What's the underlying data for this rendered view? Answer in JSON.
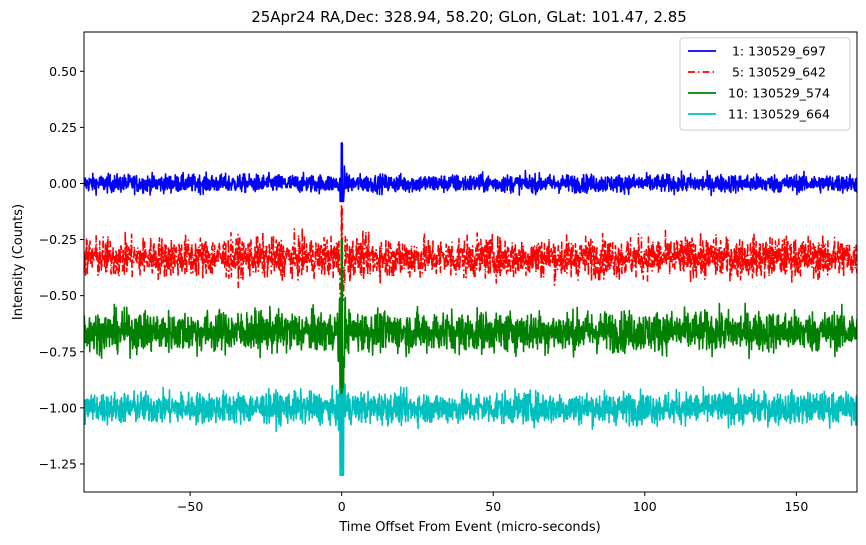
{
  "chart_data": {
    "type": "line",
    "title": "25Apr24 RA,Dec:  328.94,  58.20; GLon, GLat:  101.47,   2.85",
    "xlabel": "Time Offset From Event (micro-seconds)",
    "ylabel": "Intensity (Counts)",
    "xlim": [
      -85,
      170
    ],
    "ylim": [
      -1.375,
      0.675
    ],
    "xticks": [
      -50,
      0,
      50,
      100,
      150
    ],
    "xtick_labels": [
      "−50",
      "0",
      "50",
      "100",
      "150"
    ],
    "yticks": [
      0.5,
      0.25,
      0.0,
      -0.25,
      -0.5,
      -0.75,
      -1.0,
      -1.25
    ],
    "ytick_labels": [
      "0.50",
      "0.25",
      "0.00",
      "−0.25",
      "−0.50",
      "−0.75",
      "−1.00",
      "−1.25"
    ],
    "event_time": 0,
    "legend_position": "top-right",
    "series": [
      {
        "name": " 1: 130529_697",
        "color": "#0000ff",
        "dash": "solid",
        "baseline": 0.0,
        "noise": 0.02,
        "spike_max": 0.18,
        "spike_min": -0.08
      },
      {
        "name": " 5: 130529_642",
        "color": "#ff0000",
        "dash": "dashdot",
        "baseline": -0.33,
        "noise": 0.045,
        "spike_max": -0.1,
        "spike_min": -0.52
      },
      {
        "name": "10: 130529_574",
        "color": "#008000",
        "dash": "solid",
        "baseline": -0.66,
        "noise": 0.045,
        "spike_max": -0.25,
        "spike_min": -0.95
      },
      {
        "name": "11: 130529_664",
        "color": "#00bfbf",
        "dash": "solid",
        "baseline": -1.0,
        "noise": 0.035,
        "spike_max": -0.94,
        "spike_min": -1.3
      }
    ]
  }
}
